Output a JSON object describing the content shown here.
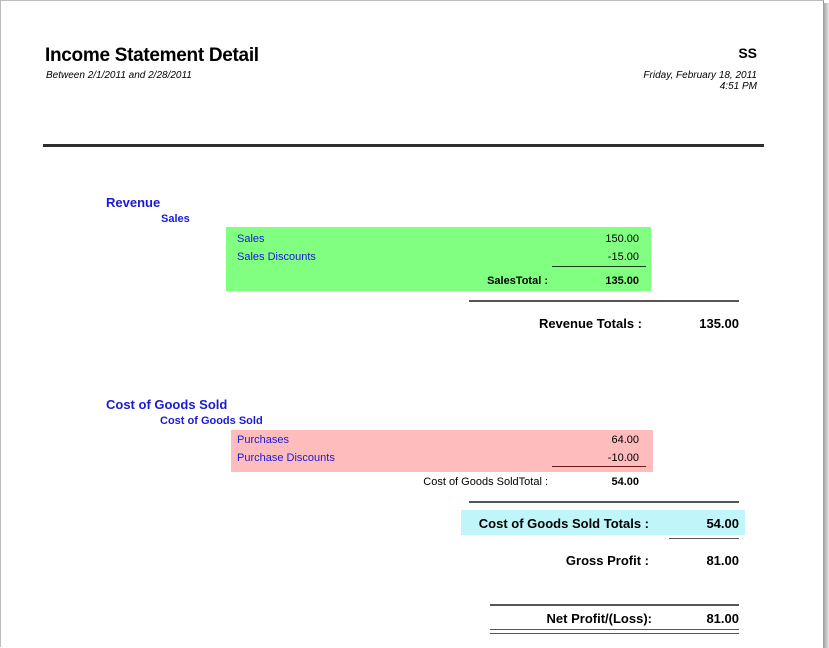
{
  "header": {
    "title": "Income Statement Detail",
    "period": "Between 2/1/2011 and 2/28/2011",
    "company": "SS",
    "date": "Friday, February 18, 2011",
    "time": "4:51 PM"
  },
  "revenue": {
    "heading": "Revenue",
    "group": "Sales",
    "accounts": [
      {
        "name": "Sales",
        "amount": "150.00"
      },
      {
        "name": "Sales Discounts",
        "amount": "-15.00"
      }
    ],
    "group_total_label": "SalesTotal :",
    "group_total": "135.00",
    "totals_label": "Revenue Totals :",
    "totals": "135.00"
  },
  "cogs": {
    "heading": "Cost of Goods Sold",
    "group": "Cost of Goods Sold",
    "accounts": [
      {
        "name": "Purchases",
        "amount": "64.00"
      },
      {
        "name": "Purchase Discounts",
        "amount": "-10.00"
      }
    ],
    "group_total_label": "Cost of Goods SoldTotal :",
    "group_total": "54.00",
    "totals_label": "Cost of Goods Sold Totals :",
    "totals": "54.00"
  },
  "summary": {
    "gross_profit_label": "Gross Profit :",
    "gross_profit": "81.00",
    "net_label": "Net Profit/(Loss):",
    "net": "81.00"
  },
  "colors": {
    "heading_blue": "#1a1ad6",
    "revenue_highlight": "#80ff80",
    "cogs_highlight": "#ffbcbc",
    "totals_highlight": "#c0f6fa"
  }
}
